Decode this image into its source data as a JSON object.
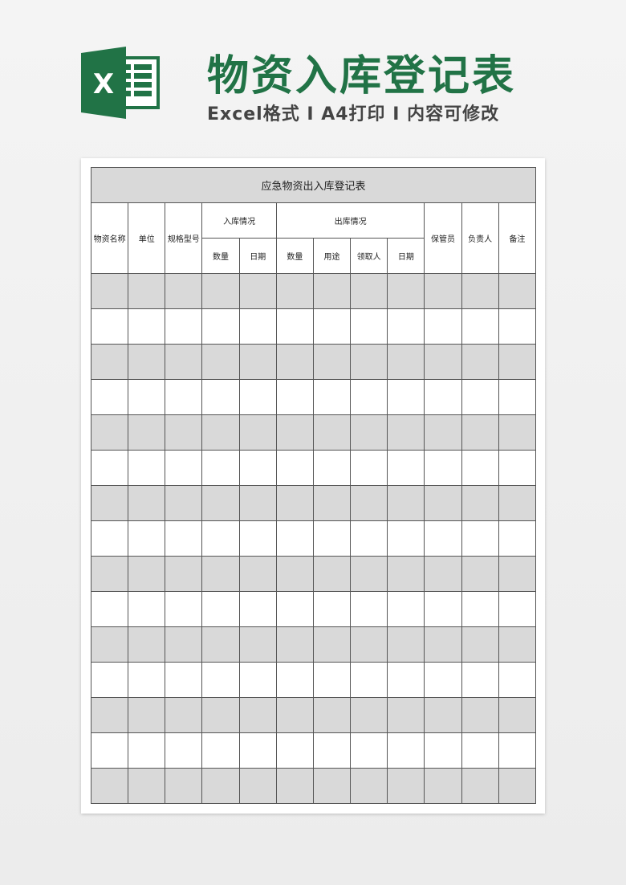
{
  "banner": {
    "logo_letter": "X",
    "title": "物资入库登记表",
    "subtitle": "Excel格式 I A4打印 I 内容可修改",
    "accent_color": "#217346"
  },
  "sheet": {
    "caption": "应急物资出入库登记表",
    "headers": {
      "name": "物资名称",
      "unit": "单位",
      "spec": "规格型号",
      "in_group": "入库情况",
      "in_qty": "数量",
      "in_date": "日期",
      "out_group": "出库情况",
      "out_qty": "数量",
      "out_use": "用途",
      "out_receiver": "领取人",
      "out_date": "日期",
      "keeper": "保管员",
      "owner": "负责人",
      "remark": "备注"
    },
    "empty_rows": 15,
    "stripe_color": "#d9d9d9"
  }
}
